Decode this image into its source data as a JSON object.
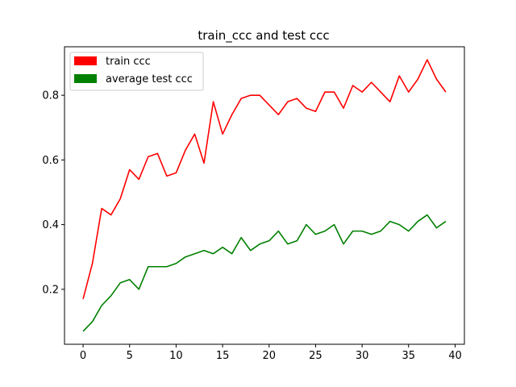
{
  "chart_data": {
    "type": "line",
    "title": "train_ccc and test ccc",
    "xlabel": "",
    "ylabel": "",
    "xlim": [
      -2,
      41
    ],
    "ylim": [
      0.03,
      0.95
    ],
    "xticks": [
      0,
      5,
      10,
      15,
      20,
      25,
      30,
      35,
      40
    ],
    "yticks": [
      0.2,
      0.4,
      0.6,
      0.8
    ],
    "ytick_labels": [
      "0.2",
      "0.4",
      "0.6",
      "0.8"
    ],
    "grid": false,
    "legend_position": "top-left",
    "x": [
      0,
      1,
      2,
      3,
      4,
      5,
      6,
      7,
      8,
      9,
      10,
      11,
      12,
      13,
      14,
      15,
      16,
      17,
      18,
      19,
      20,
      21,
      22,
      23,
      24,
      25,
      26,
      27,
      28,
      29,
      30,
      31,
      32,
      33,
      34,
      35,
      36,
      37,
      38,
      39
    ],
    "series": [
      {
        "name": "train ccc",
        "color": "#ff0000",
        "values": [
          0.17,
          0.28,
          0.45,
          0.43,
          0.48,
          0.57,
          0.54,
          0.61,
          0.62,
          0.55,
          0.56,
          0.63,
          0.68,
          0.59,
          0.78,
          0.68,
          0.74,
          0.79,
          0.8,
          0.8,
          0.77,
          0.74,
          0.78,
          0.79,
          0.76,
          0.75,
          0.81,
          0.81,
          0.76,
          0.83,
          0.81,
          0.84,
          0.81,
          0.78,
          0.86,
          0.81,
          0.85,
          0.91,
          0.85,
          0.81
        ]
      },
      {
        "name": "average test ccc",
        "color": "#008000",
        "values": [
          0.07,
          0.1,
          0.15,
          0.18,
          0.22,
          0.23,
          0.2,
          0.27,
          0.27,
          0.27,
          0.28,
          0.3,
          0.31,
          0.32,
          0.31,
          0.33,
          0.31,
          0.36,
          0.32,
          0.34,
          0.35,
          0.38,
          0.34,
          0.35,
          0.4,
          0.37,
          0.38,
          0.4,
          0.34,
          0.38,
          0.38,
          0.37,
          0.38,
          0.41,
          0.4,
          0.38,
          0.41,
          0.43,
          0.39,
          0.41
        ]
      }
    ]
  }
}
